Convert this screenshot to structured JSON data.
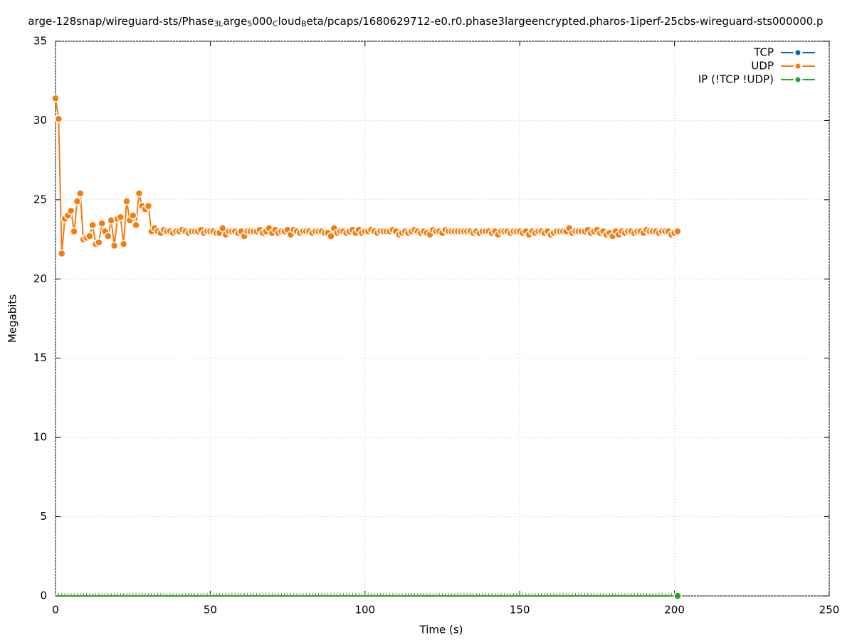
{
  "chart_data": {
    "type": "line",
    "title": [
      {
        "text": "arge-128snap/wireguard-sts/Phase",
        "sub": false
      },
      {
        "text": "3L",
        "sub": true
      },
      {
        "text": "arge",
        "sub": false
      },
      {
        "text": "5",
        "sub": true
      },
      {
        "text": "000",
        "sub": false
      },
      {
        "text": "C",
        "sub": true
      },
      {
        "text": "loud",
        "sub": false
      },
      {
        "text": "B",
        "sub": true
      },
      {
        "text": "eta/pcaps/1680629712-e0.r0.phase3largeencrypted.pharos-1iperf-25cbs-wireguard-sts000000.p",
        "sub": false
      }
    ],
    "x_label": "Time (s)",
    "y_label": "Megabits",
    "xlim": [
      0,
      250
    ],
    "xticks": [
      0,
      50,
      100,
      150,
      200,
      250
    ],
    "ylim": [
      0,
      35
    ],
    "yticks": [
      0,
      5,
      10,
      15,
      20,
      25,
      30,
      35
    ],
    "grid": true,
    "legend": "top-right",
    "x": [
      0,
      1,
      2,
      3,
      4,
      5,
      6,
      7,
      8,
      9,
      10,
      11,
      12,
      13,
      14,
      15,
      16,
      17,
      18,
      19,
      20,
      21,
      22,
      23,
      24,
      25,
      26,
      27,
      28,
      29,
      30,
      31,
      32,
      33,
      34,
      35,
      36,
      37,
      38,
      39,
      40,
      41,
      42,
      43,
      44,
      45,
      46,
      47,
      48,
      49,
      50,
      51,
      52,
      53,
      54,
      55,
      56,
      57,
      58,
      59,
      60,
      61,
      62,
      63,
      64,
      65,
      66,
      67,
      68,
      69,
      70,
      71,
      72,
      73,
      74,
      75,
      76,
      77,
      78,
      79,
      80,
      81,
      82,
      83,
      84,
      85,
      86,
      87,
      88,
      89,
      90,
      91,
      92,
      93,
      94,
      95,
      96,
      97,
      98,
      99,
      100,
      101,
      102,
      103,
      104,
      105,
      106,
      107,
      108,
      109,
      110,
      111,
      112,
      113,
      114,
      115,
      116,
      117,
      118,
      119,
      120,
      121,
      122,
      123,
      124,
      125,
      126,
      127,
      128,
      129,
      130,
      131,
      132,
      133,
      134,
      135,
      136,
      137,
      138,
      139,
      140,
      141,
      142,
      143,
      144,
      145,
      146,
      147,
      148,
      149,
      150,
      151,
      152,
      153,
      154,
      155,
      156,
      157,
      158,
      159,
      160,
      161,
      162,
      163,
      164,
      165,
      166,
      167,
      168,
      169,
      170,
      171,
      172,
      173,
      174,
      175,
      176,
      177,
      178,
      179,
      180,
      181,
      182,
      183,
      184,
      185,
      186,
      187,
      188,
      189,
      190,
      191,
      192,
      193,
      194,
      195,
      196,
      197,
      198,
      199,
      200,
      201
    ],
    "series": [
      {
        "name": "TCP",
        "color": "#0b62ad",
        "values": [
          null,
          null,
          null,
          null,
          null,
          null,
          null,
          null,
          null,
          null,
          null,
          null,
          null,
          null,
          null,
          null,
          null,
          null,
          null,
          null,
          null,
          null,
          null,
          null,
          null,
          null,
          null,
          null,
          null,
          null,
          null,
          null,
          null,
          null,
          null,
          null,
          null,
          null,
          null,
          null,
          null,
          null,
          null,
          null,
          null,
          null,
          null,
          null,
          null,
          null,
          null,
          null,
          null,
          null,
          null,
          null,
          null,
          null,
          null,
          null,
          null,
          null,
          null,
          null,
          null,
          null,
          null,
          null,
          null,
          null,
          null,
          null,
          null,
          null,
          null,
          null,
          null,
          null,
          null,
          null,
          null,
          null,
          null,
          null,
          null,
          null,
          null,
          null,
          null,
          null,
          null,
          null,
          null,
          null,
          null,
          null,
          null,
          null,
          null,
          null,
          null,
          null,
          null,
          null,
          null,
          null,
          null,
          null,
          null,
          null,
          null,
          null,
          null,
          null,
          null,
          null,
          null,
          null,
          null,
          null,
          null,
          null,
          null,
          null,
          null,
          null,
          null,
          null,
          null,
          null,
          null,
          null,
          null,
          null,
          null,
          null,
          null,
          null,
          null,
          null,
          null,
          null,
          null,
          null,
          null,
          null,
          null,
          null,
          null,
          null,
          null,
          null,
          null,
          null,
          null,
          null,
          null,
          null,
          null,
          null,
          null,
          null,
          null,
          null,
          null,
          null,
          null,
          null,
          null,
          null,
          null,
          null,
          null,
          null,
          null,
          null,
          null,
          null,
          null,
          null,
          null,
          null,
          null,
          null,
          null,
          null,
          null,
          null,
          null,
          null,
          null,
          null,
          null,
          null,
          null,
          null,
          null,
          null,
          null,
          null,
          null,
          null
        ]
      },
      {
        "name": "UDP",
        "color": "#f57c0f",
        "values": [
          31.4,
          30.1,
          21.6,
          23.8,
          24.0,
          24.3,
          23.0,
          24.9,
          25.4,
          22.5,
          22.6,
          22.7,
          23.4,
          22.2,
          22.3,
          23.5,
          23.0,
          22.7,
          23.7,
          22.1,
          23.8,
          23.9,
          22.2,
          24.9,
          23.7,
          24.0,
          23.4,
          25.4,
          24.6,
          24.4,
          24.6,
          23.0,
          23.2,
          23.0,
          22.9,
          23.1,
          23.0,
          23.0,
          22.9,
          23.0,
          23.0,
          23.1,
          23.0,
          22.9,
          23.0,
          23.0,
          23.0,
          23.1,
          22.9,
          23.0,
          23.0,
          23.0,
          22.9,
          22.9,
          23.2,
          22.8,
          23.0,
          23.0,
          23.0,
          22.9,
          23.0,
          22.7,
          23.0,
          23.0,
          23.0,
          23.0,
          23.1,
          22.9,
          23.0,
          23.2,
          22.9,
          23.1,
          22.9,
          23.0,
          23.0,
          23.1,
          22.8,
          23.1,
          23.0,
          22.9,
          23.0,
          23.0,
          23.0,
          22.9,
          23.0,
          23.0,
          23.0,
          22.9,
          22.9,
          22.7,
          23.2,
          22.9,
          23.0,
          23.0,
          22.9,
          23.0,
          23.1,
          22.9,
          23.1,
          22.9,
          23.0,
          23.0,
          23.1,
          23.0,
          22.9,
          23.0,
          23.0,
          23.0,
          23.0,
          23.1,
          23.0,
          22.8,
          22.9,
          23.0,
          22.9,
          23.0,
          23.1,
          23.0,
          22.9,
          23.0,
          22.9,
          22.8,
          23.1,
          23.0,
          23.0,
          22.9,
          23.1,
          23.0,
          23.0,
          23.0,
          23.0,
          23.0,
          23.0,
          23.0,
          23.0,
          22.9,
          23.0,
          22.9,
          23.0,
          23.0,
          23.0,
          22.9,
          23.0,
          22.8,
          23.0,
          23.0,
          23.0,
          22.9,
          23.0,
          23.0,
          23.0,
          22.9,
          23.0,
          22.8,
          23.0,
          22.9,
          23.0,
          23.0,
          22.9,
          23.0,
          22.8,
          22.9,
          23.0,
          23.0,
          23.0,
          23.0,
          23.2,
          22.9,
          23.0,
          23.0,
          23.0,
          23.0,
          23.1,
          22.9,
          23.0,
          23.1,
          22.9,
          23.0,
          22.8,
          22.9,
          22.7,
          23.0,
          22.8,
          23.0,
          22.9,
          23.0,
          23.0,
          22.9,
          23.0,
          23.0,
          22.9,
          23.1,
          23.0,
          23.0,
          23.0,
          22.9,
          23.0,
          23.0,
          23.0,
          22.8,
          22.9,
          23.0
        ]
      },
      {
        "name": "IP (!TCP  !UDP)",
        "color": "#2ca02c",
        "values": [
          0,
          0,
          0,
          0,
          0,
          0,
          0,
          0,
          0,
          0,
          0,
          0,
          0,
          0,
          0,
          0,
          0,
          0,
          0,
          0,
          0,
          0,
          0,
          0,
          0,
          0,
          0,
          0,
          0,
          0,
          0,
          0,
          0,
          0,
          0,
          0,
          0,
          0,
          0,
          0,
          0,
          0,
          0,
          0,
          0,
          0,
          0,
          0,
          0,
          0,
          0,
          0,
          0,
          0,
          0,
          0,
          0,
          0,
          0,
          0,
          0,
          0,
          0,
          0,
          0,
          0,
          0,
          0,
          0,
          0,
          0,
          0,
          0,
          0,
          0,
          0,
          0,
          0,
          0,
          0,
          0,
          0,
          0,
          0,
          0,
          0,
          0,
          0,
          0,
          0,
          0,
          0,
          0,
          0,
          0,
          0,
          0,
          0,
          0,
          0,
          0,
          0,
          0,
          0,
          0,
          0,
          0,
          0,
          0,
          0,
          0,
          0,
          0,
          0,
          0,
          0,
          0,
          0,
          0,
          0,
          0,
          0,
          0,
          0,
          0,
          0,
          0,
          0,
          0,
          0,
          0,
          0,
          0,
          0,
          0,
          0,
          0,
          0,
          0,
          0,
          0,
          0,
          0,
          0,
          0,
          0,
          0,
          0,
          0,
          0,
          0,
          0,
          0,
          0,
          0,
          0,
          0,
          0,
          0,
          0,
          0,
          0,
          0,
          0,
          0,
          0,
          0,
          0,
          0,
          0,
          0,
          0,
          0,
          0,
          0,
          0,
          0,
          0,
          0,
          0,
          0,
          0,
          0,
          0,
          0,
          0,
          0,
          0,
          0,
          0,
          0,
          0,
          0,
          0,
          0,
          0,
          0,
          0,
          0,
          0,
          0,
          0
        ]
      }
    ]
  }
}
